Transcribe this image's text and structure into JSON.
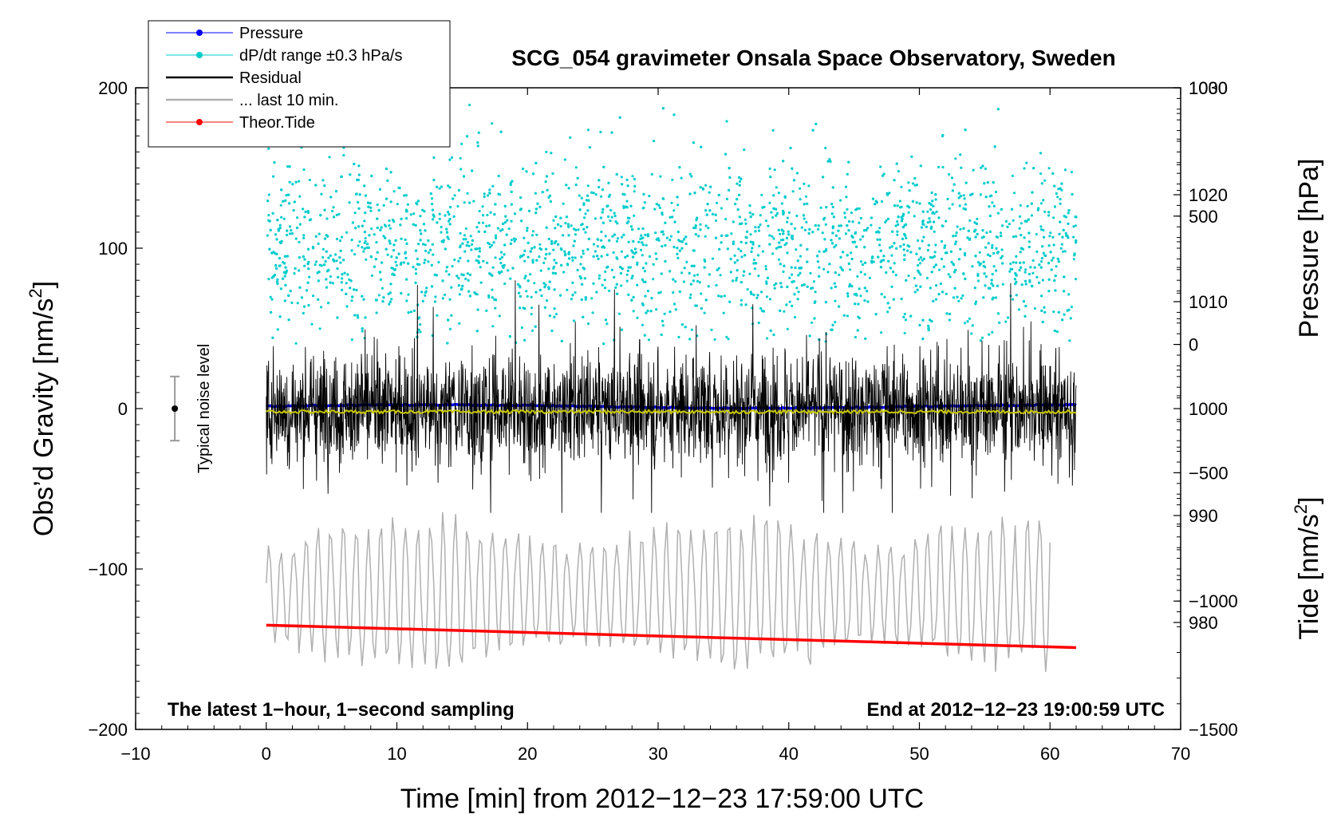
{
  "chart_data": {
    "type": "line",
    "title": "SCG_054 gravimeter Onsala Space Observatory, Sweden",
    "xlabel": "Time [min] from 2012−12−23 17:59:00 UTC",
    "xlim": [
      -10,
      70
    ],
    "x_ticks": [
      -10,
      0,
      10,
      20,
      30,
      40,
      50,
      60,
      70
    ],
    "x_tick_labels": [
      "−10",
      "0",
      "10",
      "20",
      "30",
      "40",
      "50",
      "60",
      "70"
    ],
    "left_axis": {
      "label_prefix": "Obs’d Gravity [nm/s",
      "label_sup": "2",
      "label_suffix": "]",
      "lim": [
        -200,
        200
      ],
      "ticks": [
        -200,
        -100,
        0,
        100,
        200
      ],
      "tick_labels": [
        "−200",
        "−100",
        "0",
        "100",
        "200"
      ]
    },
    "right_axis_pressure": {
      "label": "Pressure [hPa]",
      "lim": [
        970,
        1030
      ],
      "ticks": [
        980,
        990,
        1000,
        1010,
        1020,
        1030
      ],
      "tick_labels": [
        "980",
        "990",
        "1000",
        "1010",
        "1020",
        "1030"
      ]
    },
    "right_axis_tide": {
      "label_prefix": "Tide [nm/s",
      "label_sup": "2",
      "label_suffix": "]",
      "lim": [
        -1500,
        1000
      ],
      "ticks": [
        -1500,
        -1000,
        -500,
        0,
        500,
        1000
      ],
      "tick_labels": [
        "−1500",
        "−1000",
        "−500",
        "0",
        "500",
        "1000"
      ]
    },
    "legend": [
      {
        "label": "Pressure",
        "color": "#0000ff",
        "marker": true
      },
      {
        "label": "dP/dt range ±0.3 hPa/s",
        "color": "#00cccc",
        "marker": true
      },
      {
        "label": "Residual",
        "color": "#000000",
        "marker": false
      },
      {
        "label": "... last 10 min.",
        "color": "#b0b0b0",
        "marker": false
      },
      {
        "label": "Theor.Tide",
        "color": "#ff0000",
        "marker": true
      }
    ],
    "legend_position": "top-left",
    "series": [
      {
        "name": "Pressure",
        "axis": "pressure",
        "color": "#0000ff",
        "x_range": [
          0,
          62
        ],
        "approx_value": 1000.2
      },
      {
        "name": "dP/dt range ±0.3 hPa/s",
        "axis": "gravity",
        "color": "#00cccc",
        "x_range": [
          0,
          62
        ],
        "center": 102,
        "spread": [
          40,
          200
        ]
      },
      {
        "name": "Residual",
        "axis": "gravity",
        "color": "#000000",
        "x_range": [
          0,
          62
        ],
        "center": 0,
        "spread": [
          -65,
          80
        ]
      },
      {
        "name": "Residual smoothed",
        "axis": "gravity",
        "color": "#c8c800",
        "x_range": [
          0,
          62
        ],
        "approx_value": -2
      },
      {
        "name": "... last 10 min.",
        "axis": "gravity",
        "color": "#b0b0b0",
        "x_range": [
          0,
          60
        ],
        "center": -115,
        "spread": [
          -185,
          -58
        ]
      },
      {
        "name": "Theor.Tide",
        "axis": "gravity",
        "color": "#ff0000",
        "points": [
          [
            0,
            -135
          ],
          [
            62,
            -149
          ]
        ]
      }
    ],
    "noise_marker": {
      "label": "Typical noise level",
      "x": -7,
      "value": 0,
      "range": [
        -20,
        20
      ]
    },
    "annotations": {
      "bottom_left": "The latest 1−hour, 1−second sampling",
      "bottom_right": "End at 2012−12−23 19:00:59 UTC"
    }
  }
}
